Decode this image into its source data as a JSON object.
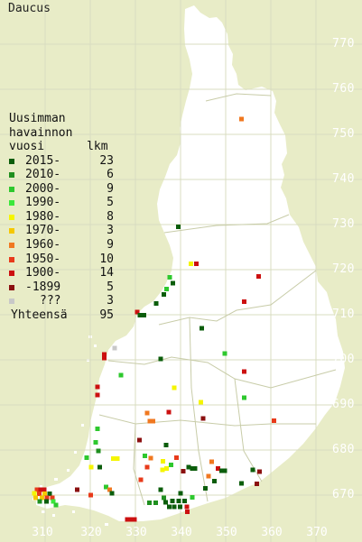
{
  "title": "Daucus",
  "legend": {
    "header": [
      "Uusimman",
      "havainnon",
      "vuosi      lkm"
    ],
    "entries": [
      {
        "label": "2015-",
        "count": "23",
        "color": "#0b5d0b"
      },
      {
        "label": "2010-",
        "count": "6",
        "color": "#1f8f1f"
      },
      {
        "label": "2000-",
        "count": "9",
        "color": "#2ec82e"
      },
      {
        "label": "1990-",
        "count": "5",
        "color": "#3be83b"
      },
      {
        "label": "1980-",
        "count": "8",
        "color": "#f5f500"
      },
      {
        "label": "1970-",
        "count": "3",
        "color": "#f5c800"
      },
      {
        "label": "1960-",
        "count": "9",
        "color": "#f07820"
      },
      {
        "label": "1950-",
        "count": "10",
        "color": "#e83a1a"
      },
      {
        "label": "1900-",
        "count": "14",
        "color": "#cc1010"
      },
      {
        "label": "-1899",
        "count": "5",
        "color": "#8b1010"
      },
      {
        "label": "???",
        "count": "3",
        "color": "#c8c8c8"
      }
    ],
    "total": {
      "label": "Yhteensä",
      "count": "95"
    }
  },
  "grid": {
    "northing_labels": [
      "770",
      "760",
      "750",
      "740",
      "730",
      "720",
      "710",
      "700",
      "690",
      "680",
      "670"
    ],
    "easting_labels": [
      "310",
      "320",
      "330",
      "340",
      "350",
      "360",
      "370"
    ]
  },
  "colors": {
    "background": "#e8ecc7",
    "land": "#ffffff",
    "grid": "#d8dcc0",
    "borders": "#c8cca8"
  },
  "observations": [
    {
      "e": 353.5,
      "n": 753.4,
      "period": "1960-"
    },
    {
      "e": 339.5,
      "n": 729.5,
      "period": "2015-"
    },
    {
      "e": 342.3,
      "n": 721.3,
      "period": "1980-"
    },
    {
      "e": 343.5,
      "n": 721.3,
      "period": "1900-"
    },
    {
      "e": 357.3,
      "n": 718.5,
      "period": "1900-"
    },
    {
      "e": 337.6,
      "n": 718.3,
      "period": "2000-"
    },
    {
      "e": 338.3,
      "n": 717.0,
      "period": "2015-"
    },
    {
      "e": 336.9,
      "n": 715.7,
      "period": "2000-"
    },
    {
      "e": 336.3,
      "n": 714.5,
      "period": "2015-"
    },
    {
      "e": 354.1,
      "n": 712.9,
      "period": "1900-"
    },
    {
      "e": 334.6,
      "n": 712.5,
      "period": "2015-"
    },
    {
      "e": 330.4,
      "n": 710.6,
      "period": "1900-"
    },
    {
      "e": 331.0,
      "n": 709.9,
      "period": "2015-"
    },
    {
      "e": 331.9,
      "n": 709.9,
      "period": "2015-"
    },
    {
      "e": 344.7,
      "n": 707.0,
      "period": "2015-"
    },
    {
      "e": 325.4,
      "n": 702.6,
      "period": "???"
    },
    {
      "e": 323.1,
      "n": 701.2,
      "period": "1900-"
    },
    {
      "e": 323.1,
      "n": 700.4,
      "period": "1900-"
    },
    {
      "e": 349.8,
      "n": 701.4,
      "period": "2000-"
    },
    {
      "e": 335.6,
      "n": 700.2,
      "period": "2015-"
    },
    {
      "e": 354.1,
      "n": 697.4,
      "period": "1900-"
    },
    {
      "e": 326.8,
      "n": 696.6,
      "period": "2000-"
    },
    {
      "e": 321.6,
      "n": 694.0,
      "period": "1900-"
    },
    {
      "e": 321.6,
      "n": 692.2,
      "period": "1900-"
    },
    {
      "e": 338.6,
      "n": 693.8,
      "period": "1980-"
    },
    {
      "e": 354.1,
      "n": 691.6,
      "period": "2000-"
    },
    {
      "e": 344.5,
      "n": 690.6,
      "period": "1980-"
    },
    {
      "e": 332.6,
      "n": 688.2,
      "period": "1960-"
    },
    {
      "e": 337.4,
      "n": 688.4,
      "period": "1900-"
    },
    {
      "e": 333.2,
      "n": 686.4,
      "period": "1960-"
    },
    {
      "e": 333.9,
      "n": 686.4,
      "period": "1960-"
    },
    {
      "e": 345.0,
      "n": 687.0,
      "period": "-1899"
    },
    {
      "e": 360.7,
      "n": 686.5,
      "period": "1950-"
    },
    {
      "e": 321.6,
      "n": 684.7,
      "period": "2000-"
    },
    {
      "e": 321.2,
      "n": 681.7,
      "period": "2000-"
    },
    {
      "e": 330.9,
      "n": 682.2,
      "period": "-1899"
    },
    {
      "e": 321.8,
      "n": 679.8,
      "period": "2010-"
    },
    {
      "e": 336.8,
      "n": 681.1,
      "period": "2015-"
    },
    {
      "e": 319.2,
      "n": 678.3,
      "period": "2000-"
    },
    {
      "e": 325.1,
      "n": 678.1,
      "period": "1980-"
    },
    {
      "e": 326.0,
      "n": 678.1,
      "period": "1980-"
    },
    {
      "e": 332.1,
      "n": 678.7,
      "period": "2000-"
    },
    {
      "e": 333.4,
      "n": 678.2,
      "period": "1960-"
    },
    {
      "e": 336.1,
      "n": 677.5,
      "period": "1980-"
    },
    {
      "e": 339.1,
      "n": 678.3,
      "period": "1950-"
    },
    {
      "e": 346.9,
      "n": 677.4,
      "period": "1960-"
    },
    {
      "e": 337.9,
      "n": 676.7,
      "period": "2000-"
    },
    {
      "e": 320.2,
      "n": 676.2,
      "period": "1980-"
    },
    {
      "e": 322.1,
      "n": 676.2,
      "period": "2015-"
    },
    {
      "e": 332.6,
      "n": 676.2,
      "period": "1950-"
    },
    {
      "e": 336.0,
      "n": 675.6,
      "period": "1980-"
    },
    {
      "e": 336.9,
      "n": 675.9,
      "period": "1980-"
    },
    {
      "e": 341.8,
      "n": 676.2,
      "period": "2015-"
    },
    {
      "e": 342.6,
      "n": 675.9,
      "period": "2015-"
    },
    {
      "e": 343.2,
      "n": 675.9,
      "period": "2015-"
    },
    {
      "e": 348.3,
      "n": 675.9,
      "period": "1900-"
    },
    {
      "e": 349.1,
      "n": 675.4,
      "period": "2015-"
    },
    {
      "e": 349.8,
      "n": 675.4,
      "period": "2015-"
    },
    {
      "e": 340.6,
      "n": 675.3,
      "period": "-1899"
    },
    {
      "e": 356.0,
      "n": 675.6,
      "period": "2015-"
    },
    {
      "e": 357.5,
      "n": 675.2,
      "period": "-1899"
    },
    {
      "e": 346.2,
      "n": 674.2,
      "period": "1960-"
    },
    {
      "e": 331.2,
      "n": 673.4,
      "period": "1950-"
    },
    {
      "e": 347.5,
      "n": 673.1,
      "period": "2015-"
    },
    {
      "e": 353.5,
      "n": 672.6,
      "period": "2015-"
    },
    {
      "e": 356.9,
      "n": 672.5,
      "period": "-1899"
    },
    {
      "e": 323.5,
      "n": 671.8,
      "period": "2000-"
    },
    {
      "e": 324.3,
      "n": 671.2,
      "period": "1960-"
    },
    {
      "e": 335.6,
      "n": 671.2,
      "period": "2015-"
    },
    {
      "e": 345.5,
      "n": 671.5,
      "period": "2015-"
    },
    {
      "e": 308.2,
      "n": 671.2,
      "period": "1950-"
    },
    {
      "e": 309.0,
      "n": 671.2,
      "period": "1900-"
    },
    {
      "e": 309.8,
      "n": 671.2,
      "period": "1900-"
    },
    {
      "e": 317.1,
      "n": 671.2,
      "period": "-1899"
    },
    {
      "e": 324.8,
      "n": 670.4,
      "period": "2015-"
    },
    {
      "e": 307.6,
      "n": 670.4,
      "period": "1980-"
    },
    {
      "e": 308.7,
      "n": 670.3,
      "period": "1950-"
    },
    {
      "e": 309.9,
      "n": 670.3,
      "period": "1970-"
    },
    {
      "e": 311.0,
      "n": 670.3,
      "period": "2015-"
    },
    {
      "e": 320.1,
      "n": 670.0,
      "period": "1950-"
    },
    {
      "e": 340.0,
      "n": 670.4,
      "period": "2015-"
    },
    {
      "e": 307.9,
      "n": 669.4,
      "period": "1970-"
    },
    {
      "e": 309.3,
      "n": 669.4,
      "period": "1970-"
    },
    {
      "e": 310.4,
      "n": 669.4,
      "period": "1950-"
    },
    {
      "e": 311.6,
      "n": 669.4,
      "period": "1950-"
    },
    {
      "e": 336.3,
      "n": 669.4,
      "period": "2010-"
    },
    {
      "e": 342.6,
      "n": 669.5,
      "period": "2000-"
    },
    {
      "e": 308.8,
      "n": 668.6,
      "period": "2010-"
    },
    {
      "e": 310.3,
      "n": 668.6,
      "period": "2015-"
    },
    {
      "e": 311.8,
      "n": 668.6,
      "period": "1990-"
    },
    {
      "e": 333.1,
      "n": 668.3,
      "period": "2010-"
    },
    {
      "e": 334.5,
      "n": 668.3,
      "period": "2010-"
    },
    {
      "e": 336.7,
      "n": 668.4,
      "period": "2015-"
    },
    {
      "e": 338.2,
      "n": 668.7,
      "period": "2015-"
    },
    {
      "e": 339.6,
      "n": 668.7,
      "period": "2015-"
    },
    {
      "e": 340.9,
      "n": 668.7,
      "period": "2015-"
    },
    {
      "e": 312.4,
      "n": 667.8,
      "period": "2000-"
    },
    {
      "e": 337.5,
      "n": 667.4,
      "period": "2015-"
    },
    {
      "e": 338.6,
      "n": 667.4,
      "period": "2015-"
    },
    {
      "e": 339.9,
      "n": 667.4,
      "period": "2015-"
    },
    {
      "e": 341.4,
      "n": 667.4,
      "period": "1900-"
    },
    {
      "e": 341.5,
      "n": 666.3,
      "period": "1900-"
    },
    {
      "e": 328.2,
      "n": 664.6,
      "period": "1900-"
    },
    {
      "e": 329.0,
      "n": 664.6,
      "period": "1900-"
    },
    {
      "e": 329.8,
      "n": 664.6,
      "period": "1900-"
    }
  ]
}
